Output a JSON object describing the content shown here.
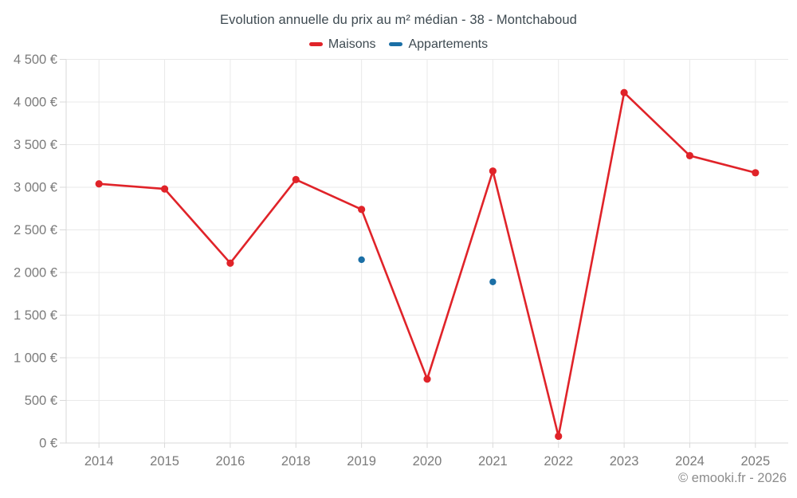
{
  "chart_data": {
    "type": "line",
    "title": "Evolution annuelle du prix au m² médian - 38 - Montchaboud",
    "categories": [
      "2014",
      "2015",
      "2016",
      "2018",
      "2019",
      "2020",
      "2021",
      "2022",
      "2023",
      "2024",
      "2025"
    ],
    "series": [
      {
        "name": "Maisons",
        "color": "#e02329",
        "mode": "line+markers",
        "values": [
          3040,
          2980,
          2110,
          3090,
          2740,
          750,
          3190,
          80,
          4110,
          3370,
          3170
        ]
      },
      {
        "name": "Appartements",
        "color": "#1b6fa6",
        "mode": "markers",
        "values": [
          null,
          null,
          null,
          null,
          2150,
          null,
          1890,
          null,
          null,
          null,
          null
        ]
      }
    ],
    "ylim": [
      0,
      4500
    ],
    "ytick_step": 500,
    "ytick_labels": [
      "0 €",
      "500 €",
      "1 000 €",
      "1 500 €",
      "2 000 €",
      "2 500 €",
      "3 000 €",
      "3 500 €",
      "4 000 €",
      "4 500 €"
    ],
    "xlabel": "",
    "ylabel": "",
    "grid": true,
    "legend_position": "top"
  },
  "footer": {
    "text": "© emooki.fr - 2026"
  },
  "colors": {
    "grid": "#e9e9e9",
    "axis": "#d9d9d9",
    "tick": "#d9d9d9",
    "title_text": "#3e4a51",
    "axis_text": "#7b7b7b",
    "footer_text": "#8c8c8c",
    "background": "#ffffff"
  }
}
